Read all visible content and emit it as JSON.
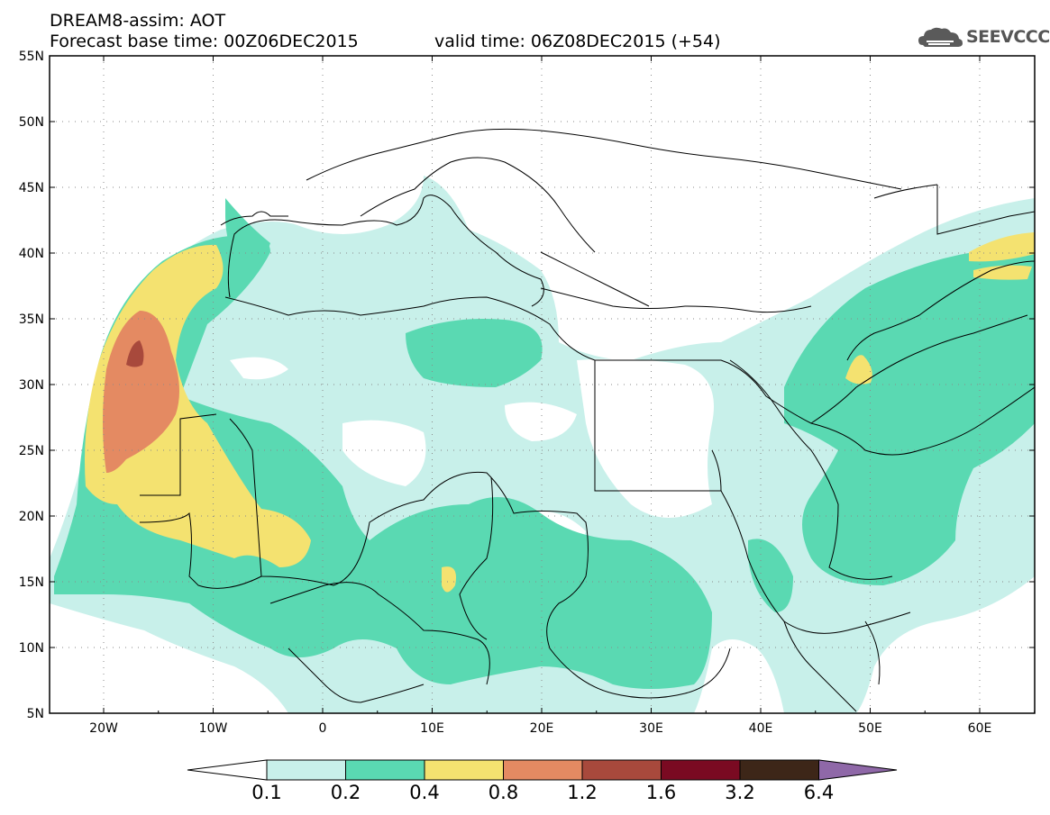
{
  "header": {
    "title": "DREAM8-assim: AOT",
    "base_time": "Forecast base time: 00Z06DEC2015",
    "valid_time": "valid time: 06Z08DEC2015 (+54)",
    "logo_text": "SEEVCCC"
  },
  "map": {
    "lat_labels": [
      "55N",
      "50N",
      "45N",
      "40N",
      "35N",
      "30N",
      "25N",
      "20N",
      "15N",
      "10N",
      "5N"
    ],
    "lon_labels": [
      "20W",
      "10W",
      "0",
      "10E",
      "20E",
      "30E",
      "40E",
      "50E",
      "60E"
    ],
    "colors": {
      "land_border": "#000000",
      "grid": "#8a8a8a",
      "background": "#ffffff"
    }
  },
  "colorbar": {
    "labels": [
      "0.1",
      "0.2",
      "0.4",
      "0.8",
      "1.2",
      "1.6",
      "3.2",
      "6.4"
    ],
    "colors": [
      "#ffffff",
      "#c8f0ea",
      "#5ad9b2",
      "#f4e270",
      "#e48a62",
      "#a8493c",
      "#7a0a22",
      "#3d2618",
      "#8f68a8"
    ]
  }
}
